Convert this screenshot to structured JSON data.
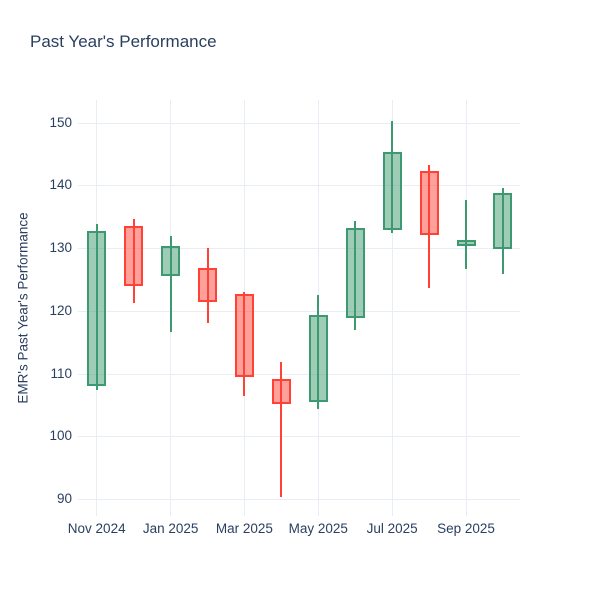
{
  "chart_data": {
    "type": "candlestick",
    "title": "Past Year's Performance",
    "xlabel": "",
    "ylabel": "EMR's Past Year's Performance",
    "x_tick_labels": [
      "Nov 2024",
      "Jan 2025",
      "Mar 2025",
      "May 2025",
      "Jul 2025",
      "Sep 2025"
    ],
    "y_ticks": [
      90,
      100,
      110,
      120,
      130,
      140,
      150
    ],
    "ylim": [
      87.3,
      153.6
    ],
    "grid": true,
    "legend": false,
    "candles": [
      {
        "month": "Nov 2024",
        "open": 108.0,
        "high": 133.9,
        "low": 107.4,
        "close": 132.7
      },
      {
        "month": "Dec 2024",
        "open": 133.6,
        "high": 134.7,
        "low": 121.2,
        "close": 123.9
      },
      {
        "month": "Jan 2025",
        "open": 125.5,
        "high": 132.0,
        "low": 116.7,
        "close": 130.3
      },
      {
        "month": "Feb 2025",
        "open": 126.8,
        "high": 130.0,
        "low": 118.1,
        "close": 121.4
      },
      {
        "month": "Mar 2025",
        "open": 122.7,
        "high": 123.0,
        "low": 106.4,
        "close": 109.5
      },
      {
        "month": "Apr 2025",
        "open": 109.2,
        "high": 111.9,
        "low": 90.3,
        "close": 105.2
      },
      {
        "month": "May 2025",
        "open": 105.4,
        "high": 122.5,
        "low": 104.4,
        "close": 119.3
      },
      {
        "month": "Jun 2025",
        "open": 118.9,
        "high": 134.4,
        "low": 117.0,
        "close": 133.2
      },
      {
        "month": "Jul 2025",
        "open": 132.8,
        "high": 150.2,
        "low": 132.4,
        "close": 145.3
      },
      {
        "month": "Aug 2025",
        "open": 142.3,
        "high": 143.2,
        "low": 123.6,
        "close": 132.0
      },
      {
        "month": "Sep 2025",
        "open": 130.3,
        "high": 137.7,
        "low": 126.6,
        "close": 131.3
      },
      {
        "month": "Oct 2025",
        "open": 129.8,
        "high": 139.6,
        "low": 125.8,
        "close": 138.8
      }
    ],
    "colors": {
      "increasing_line": "#3D9970",
      "increasing_fill": "rgba(61,153,112,0.5)",
      "decreasing_line": "#FF4136",
      "decreasing_fill": "rgba(255,65,54,0.5)",
      "gridline": "#E9EDF6",
      "text": "#2A3F5F",
      "background": "#FFFFFF"
    }
  }
}
